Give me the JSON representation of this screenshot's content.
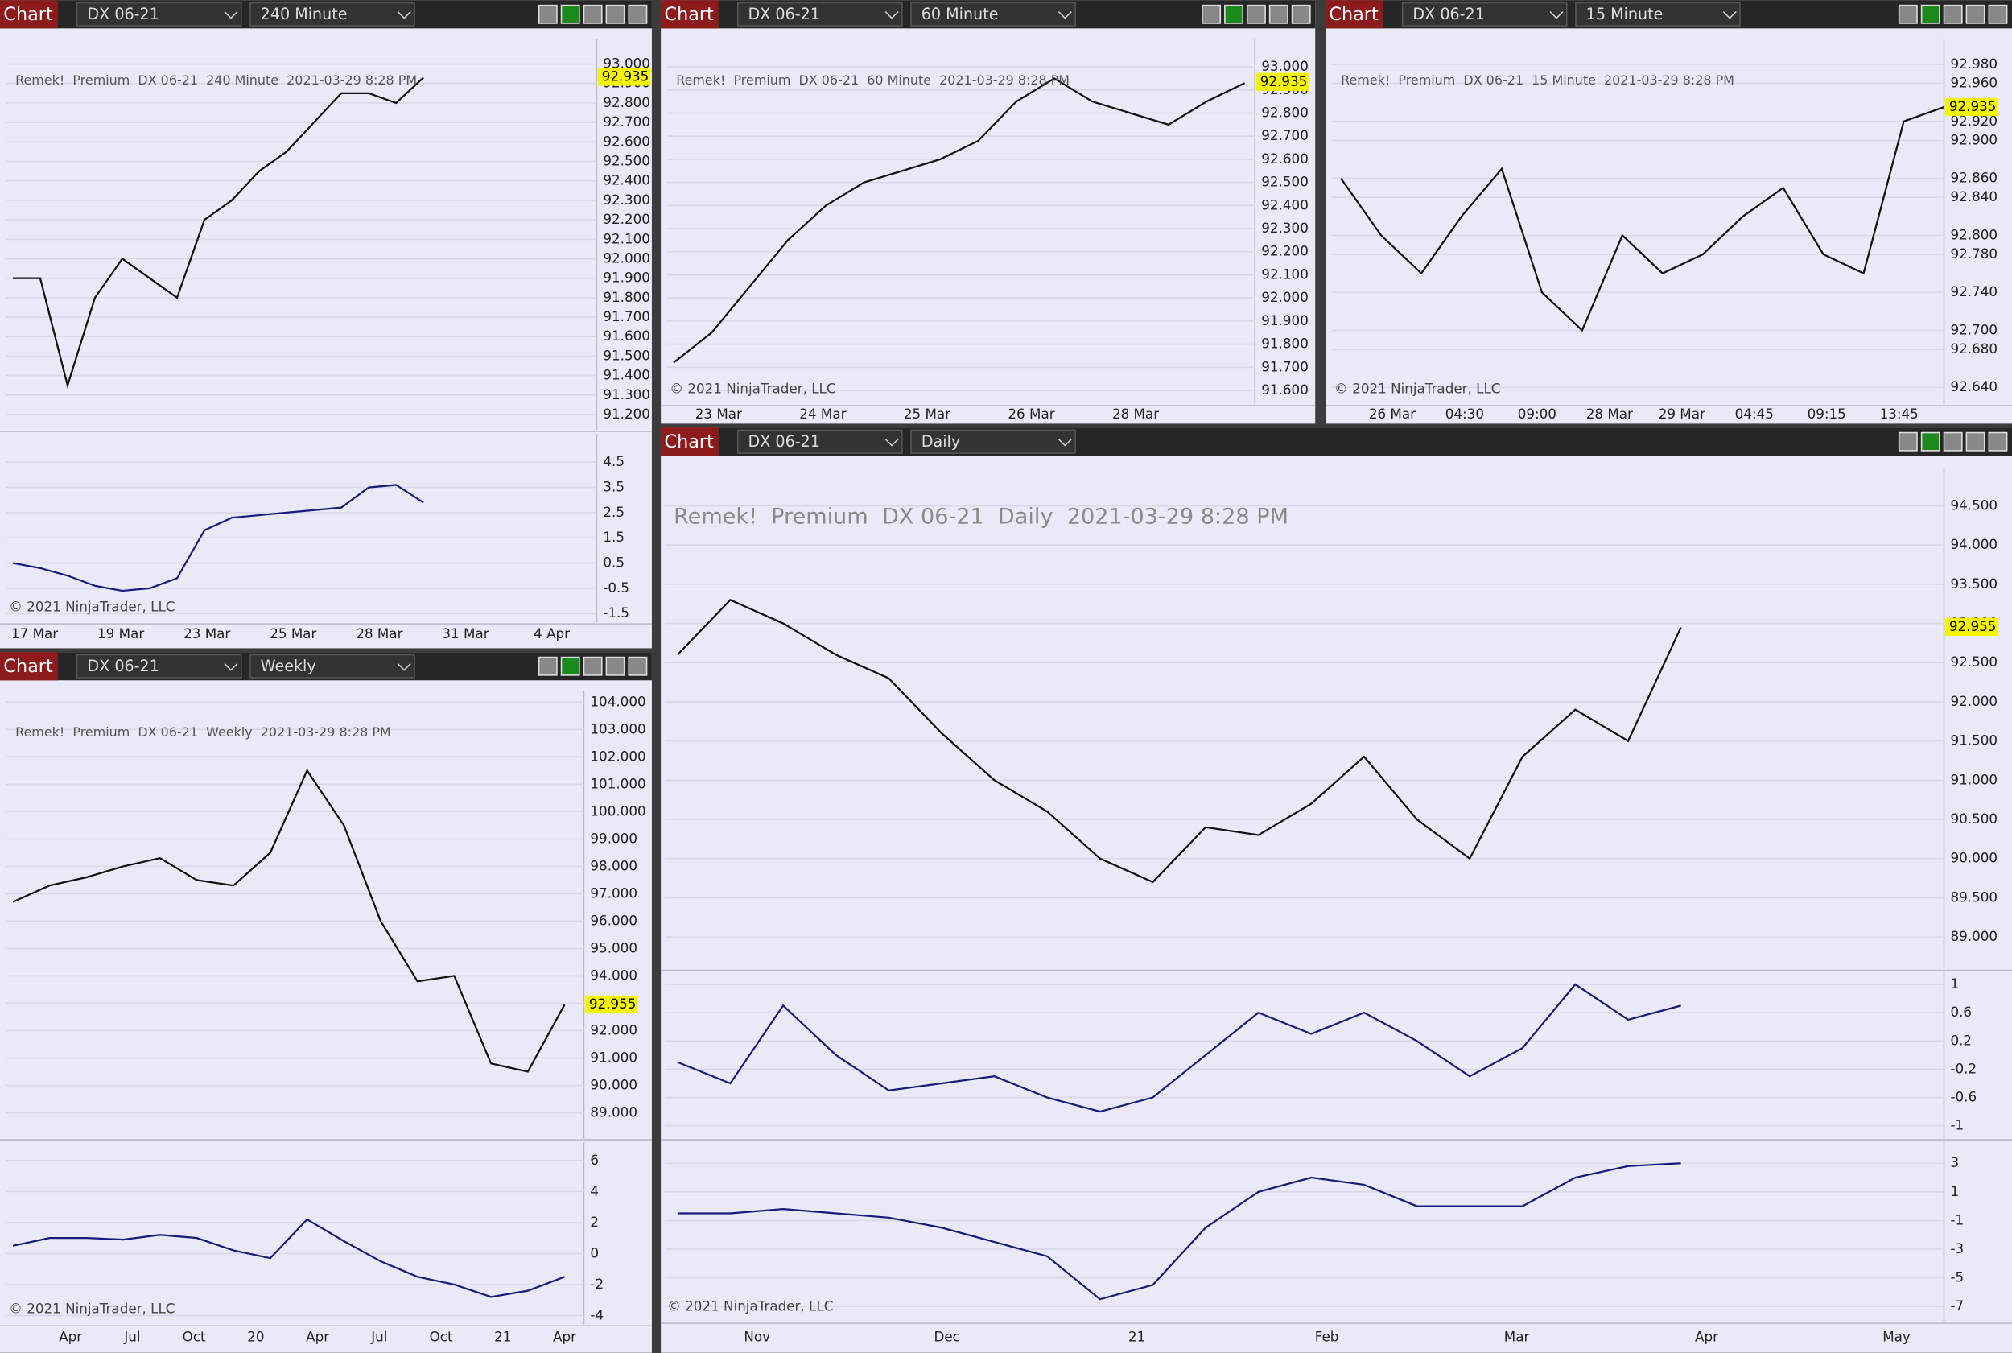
{
  "windows": [
    {
      "header": {
        "button": "Chart",
        "instrument": "DX 06-21",
        "interval": "240 Minute"
      },
      "title": "Remek!  Premium  DX 06-21  240 Minute  2021-03-29 8:28 PM",
      "copyright": "© 2021 NinjaTrader, LLC",
      "last_price": {
        "value": 92.935,
        "label": "92.935"
      },
      "price": {
        "type": "line",
        "values": [
          91.9,
          91.9,
          91.35,
          91.8,
          92.0,
          91.9,
          91.8,
          92.2,
          92.3,
          92.45,
          92.55,
          92.7,
          92.85,
          92.85,
          92.8,
          92.93
        ],
        "ylim": [
          91.12,
          93.13
        ],
        "yticks": [
          {
            "value": 93.0,
            "label": "93.000"
          },
          {
            "value": 92.9,
            "label": "92.900"
          },
          {
            "value": 92.8,
            "label": "92.800"
          },
          {
            "value": 92.7,
            "label": "92.700"
          },
          {
            "value": 92.6,
            "label": "92.600"
          },
          {
            "value": 92.5,
            "label": "92.500"
          },
          {
            "value": 92.4,
            "label": "92.400"
          },
          {
            "value": 92.3,
            "label": "92.300"
          },
          {
            "value": 92.2,
            "label": "92.200"
          },
          {
            "value": 92.1,
            "label": "92.100"
          },
          {
            "value": 92.0,
            "label": "92.000"
          },
          {
            "value": 91.9,
            "label": "91.900"
          },
          {
            "value": 91.8,
            "label": "91.800"
          },
          {
            "value": 91.7,
            "label": "91.700"
          },
          {
            "value": 91.6,
            "label": "91.600"
          },
          {
            "value": 91.5,
            "label": "91.500"
          },
          {
            "value": 91.4,
            "label": "91.400"
          },
          {
            "value": 91.3,
            "label": "91.300"
          },
          {
            "value": 91.2,
            "label": "91.200"
          }
        ]
      },
      "indicators": [
        {
          "type": "line",
          "values": [
            0.5,
            0.3,
            0.0,
            -0.4,
            -0.6,
            -0.5,
            -0.1,
            1.8,
            2.3,
            2.4,
            2.5,
            2.6,
            2.7,
            3.5,
            3.6,
            2.9
          ],
          "ylim": [
            -1.86,
            5.62
          ],
          "yticks": [
            4.5,
            3.5,
            2.5,
            1.5,
            0.5,
            -0.5,
            -1.5
          ]
        }
      ],
      "xlabels": [
        "17 Mar",
        "19 Mar",
        "23 Mar",
        "25 Mar",
        "28 Mar",
        "31 Mar",
        "4 Apr"
      ]
    },
    {
      "header": {
        "button": "Chart",
        "instrument": "DX 06-21",
        "interval": "60 Minute"
      },
      "title": "Remek!  Premium  DX 06-21  60 Minute  2021-03-29 8:28 PM",
      "copyright": "© 2021 NinjaTrader, LLC",
      "last_price": {
        "value": 92.935,
        "label": "92.935"
      },
      "price": {
        "type": "line",
        "values": [
          91.72,
          91.85,
          92.05,
          92.25,
          92.4,
          92.5,
          92.55,
          92.6,
          92.68,
          92.85,
          92.95,
          92.85,
          92.8,
          92.75,
          92.85,
          92.93
        ],
        "ylim": [
          91.539,
          93.122
        ],
        "yticks": [
          {
            "value": 93.0,
            "label": "93.000"
          },
          {
            "value": 92.9,
            "label": "92.900"
          },
          {
            "value": 92.8,
            "label": "92.800"
          },
          {
            "value": 92.7,
            "label": "92.700"
          },
          {
            "value": 92.6,
            "label": "92.600"
          },
          {
            "value": 92.5,
            "label": "92.500"
          },
          {
            "value": 92.4,
            "label": "92.400"
          },
          {
            "value": 92.3,
            "label": "92.300"
          },
          {
            "value": 92.2,
            "label": "92.200"
          },
          {
            "value": 92.1,
            "label": "92.100"
          },
          {
            "value": 92.0,
            "label": "92.000"
          },
          {
            "value": 91.9,
            "label": "91.900"
          },
          {
            "value": 91.8,
            "label": "91.800"
          },
          {
            "value": 91.7,
            "label": "91.700"
          },
          {
            "value": 91.6,
            "label": "91.600"
          }
        ]
      },
      "indicators": [],
      "xlabels": [
        "23 Mar",
        "24 Mar",
        "25 Mar",
        "26 Mar",
        "28 Mar"
      ]
    },
    {
      "header": {
        "button": "Chart",
        "instrument": "DX 06-21",
        "interval": "15 Minute"
      },
      "title": "Remek!  Premium  DX 06-21  15 Minute  2021-03-29 8:28 PM",
      "copyright": "© 2021 NinjaTrader, LLC",
      "last_price": {
        "value": 92.935,
        "label": "92.935"
      },
      "price": {
        "type": "line",
        "values": [
          92.86,
          92.8,
          92.76,
          92.82,
          92.87,
          92.74,
          92.7,
          92.8,
          92.76,
          92.78,
          92.82,
          92.85,
          92.78,
          92.76,
          92.92,
          92.935
        ],
        "ylim": [
          92.622,
          93.007
        ],
        "yticks": [
          {
            "value": 92.98,
            "label": "92.980"
          },
          {
            "value": 92.96,
            "label": "92.960"
          },
          {
            "value": 92.92,
            "label": "92.920"
          },
          {
            "value": 92.9,
            "label": "92.900"
          },
          {
            "value": 92.86,
            "label": "92.860"
          },
          {
            "value": 92.84,
            "label": "92.840"
          },
          {
            "value": 92.8,
            "label": "92.800"
          },
          {
            "value": 92.78,
            "label": "92.780"
          },
          {
            "value": 92.74,
            "label": "92.740"
          },
          {
            "value": 92.7,
            "label": "92.700"
          },
          {
            "value": 92.68,
            "label": "92.680"
          },
          {
            "value": 92.64,
            "label": "92.640"
          }
        ]
      },
      "indicators": [],
      "xlabels": [
        "26 Mar",
        "04:30",
        "09:00",
        "28 Mar",
        "29 Mar",
        "04:45",
        "09:15",
        "13:45"
      ]
    },
    {
      "header": {
        "button": "Chart",
        "instrument": "DX 06-21",
        "interval": "Weekly"
      },
      "title": "Remek!  Premium  DX 06-21  Weekly  2021-03-29 8:28 PM",
      "copyright": "© 2021 NinjaTrader, LLC",
      "last_price": {
        "value": 92.955,
        "label": "92.955"
      },
      "price": {
        "type": "line",
        "values": [
          96.7,
          97.3,
          97.6,
          98.0,
          98.3,
          97.5,
          97.3,
          98.5,
          101.5,
          99.5,
          96.0,
          93.8,
          94.0,
          90.8,
          90.5,
          92.95
        ],
        "ylim": [
          88.06,
          104.42
        ],
        "yticks": [
          {
            "value": 104,
            "label": "104.000"
          },
          {
            "value": 103,
            "label": "103.000"
          },
          {
            "value": 102,
            "label": "102.000"
          },
          {
            "value": 101,
            "label": "101.000"
          },
          {
            "value": 100,
            "label": "100.000"
          },
          {
            "value": 99,
            "label": "99.000"
          },
          {
            "value": 98,
            "label": "98.000"
          },
          {
            "value": 97,
            "label": "97.000"
          },
          {
            "value": 96,
            "label": "96.000"
          },
          {
            "value": 95,
            "label": "95.000"
          },
          {
            "value": 94,
            "label": "94.000"
          },
          {
            "value": 93,
            "label": "93.000"
          },
          {
            "value": 92,
            "label": "92.000"
          },
          {
            "value": 91,
            "label": "91.000"
          },
          {
            "value": 90,
            "label": "90.000"
          },
          {
            "value": 89,
            "label": "89.000"
          }
        ]
      },
      "indicators": [
        {
          "type": "line",
          "values": [
            0.5,
            1.0,
            1.0,
            0.9,
            1.2,
            1.0,
            0.2,
            -0.3,
            2.2,
            0.8,
            -0.5,
            -1.5,
            -2.0,
            -2.8,
            -2.4,
            -1.5
          ],
          "ylim": [
            -4.58,
            7.17
          ],
          "yticks": [
            6,
            4,
            2,
            0,
            -2,
            -4
          ]
        }
      ],
      "xlabels": [
        "Apr",
        "Jul",
        "Oct",
        "20",
        "Apr",
        "Jul",
        "Oct",
        "21",
        "Apr"
      ]
    },
    {
      "header": {
        "button": "Chart",
        "instrument": "DX 06-21",
        "interval": "Daily"
      },
      "title": "Remek!  Premium  DX 06-21  Daily  2021-03-29 8:28 PM",
      "copyright": "© 2021 NinjaTrader, LLC",
      "last_price": {
        "value": 92.955,
        "label": "92.955"
      },
      "price": {
        "type": "line",
        "values": [
          92.6,
          93.3,
          93.0,
          92.6,
          92.3,
          91.6,
          91.0,
          90.6,
          90.0,
          89.7,
          90.4,
          90.3,
          90.7,
          91.3,
          90.5,
          90.0,
          91.3,
          91.9,
          91.5,
          92.95
        ],
        "ylim": [
          88.59,
          94.975
        ],
        "yticks": [
          {
            "value": 94.5,
            "label": "94.500"
          },
          {
            "value": 94,
            "label": "94.000"
          },
          {
            "value": 93.5,
            "label": "93.500"
          },
          {
            "value": 93,
            "label": "93.000"
          },
          {
            "value": 92.5,
            "label": "92.500"
          },
          {
            "value": 92,
            "label": "92.000"
          },
          {
            "value": 91.5,
            "label": "91.500"
          },
          {
            "value": 91,
            "label": "91.000"
          },
          {
            "value": 90.5,
            "label": "90.500"
          },
          {
            "value": 90,
            "label": "90.000"
          },
          {
            "value": 89.5,
            "label": "89.500"
          },
          {
            "value": 89,
            "label": "89.000"
          }
        ]
      },
      "indicators": [
        {
          "type": "line",
          "values": [
            -0.1,
            -0.4,
            0.7,
            0.0,
            -0.5,
            -0.4,
            -0.3,
            -0.6,
            -0.8,
            -0.6,
            0.0,
            0.6,
            0.3,
            0.6,
            0.2,
            -0.3,
            0.1,
            1.0,
            0.5,
            0.7
          ],
          "ylim": [
            -1.18,
            1.18
          ],
          "yticks": [
            1,
            0.6,
            0.2,
            -0.2,
            -0.6,
            -1
          ]
        },
        {
          "type": "line",
          "values": [
            -0.5,
            -0.5,
            -0.2,
            -0.5,
            -0.8,
            -1.5,
            -2.5,
            -3.5,
            -6.5,
            -5.5,
            -1.5,
            1.0,
            2.0,
            1.5,
            0.0,
            0.0,
            0.0,
            2.0,
            2.8,
            3.0
          ],
          "ylim": [
            -8.09,
            4.55
          ],
          "yticks": [
            3,
            1,
            -1,
            -3,
            -5,
            -7
          ]
        }
      ],
      "xlabels": [
        "Nov",
        "Dec",
        "21",
        "Feb",
        "Mar",
        "Apr",
        "May"
      ]
    }
  ]
}
